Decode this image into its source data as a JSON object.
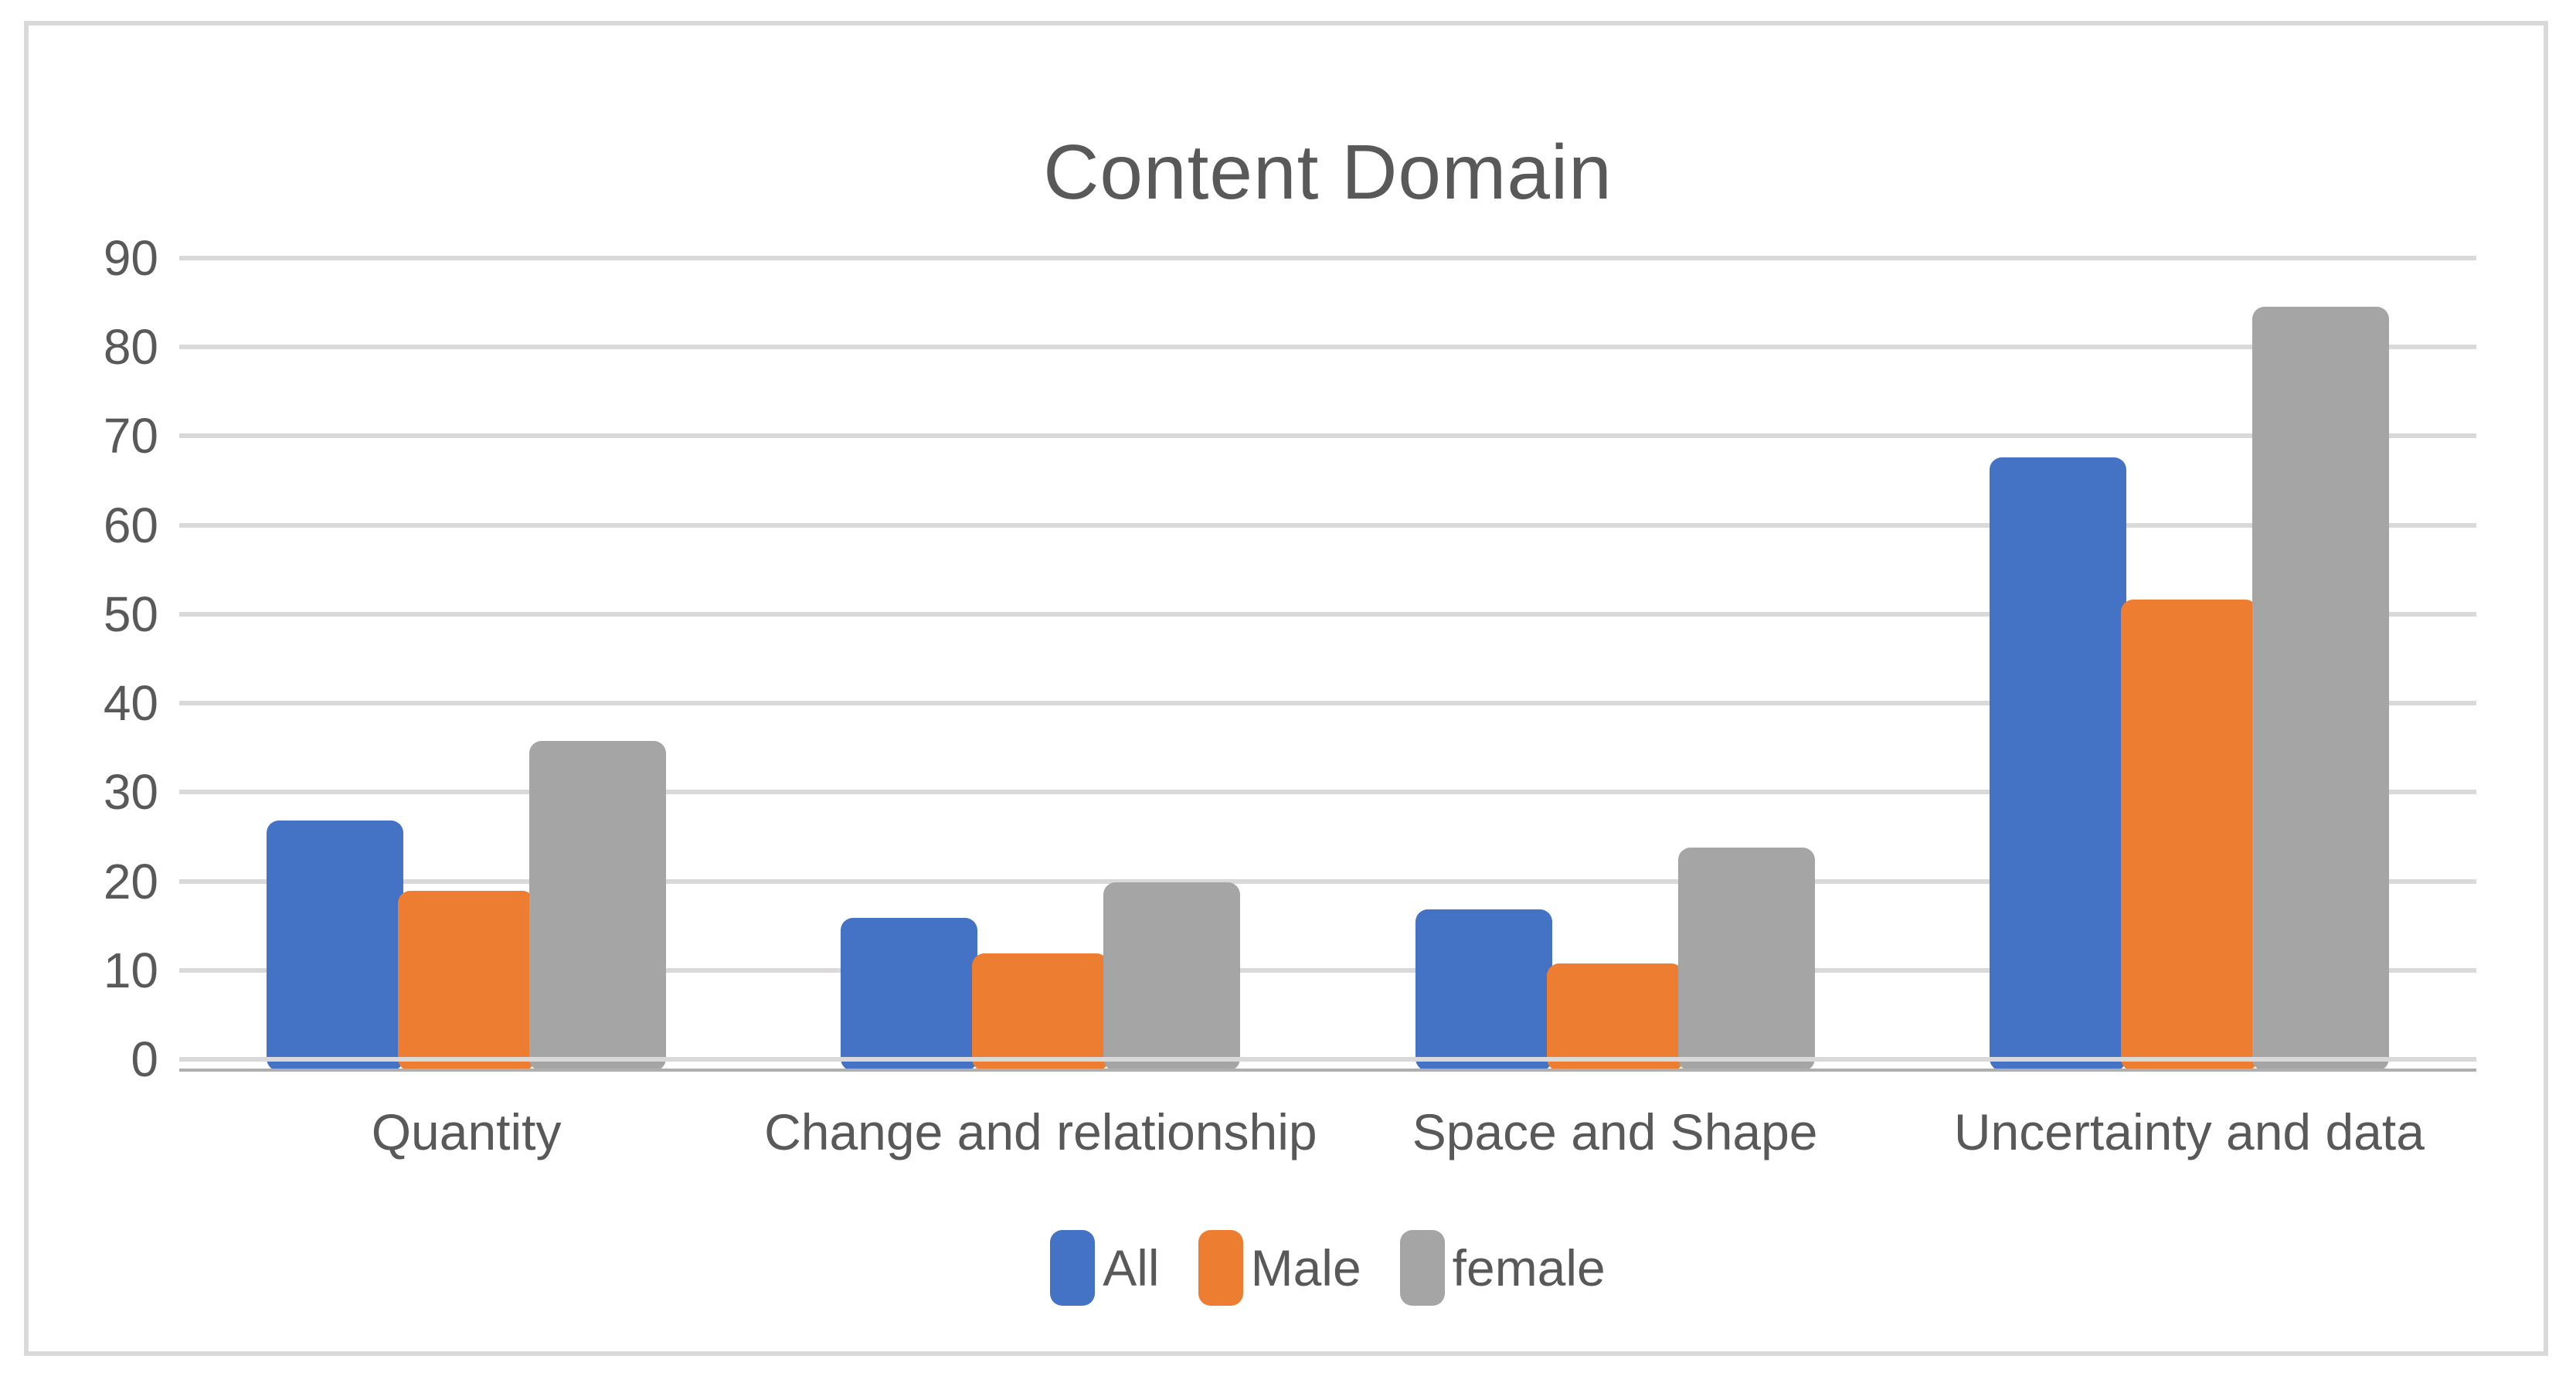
{
  "title": "Content Domain",
  "colors": {
    "text": "#595959",
    "gridline": "#D9D9D9",
    "axis_line": "#AFAFAF",
    "background": "#FFFFFF",
    "frame_border": "#D9D9D9"
  },
  "chart_data": {
    "type": "bar",
    "title": "Content Domain",
    "xlabel": "",
    "ylabel": "",
    "grid": true,
    "legend_position": "bottom",
    "ylim": [
      0,
      90
    ],
    "ytick_step": 10,
    "ytick_labels": [
      "0",
      "10",
      "20",
      "30",
      "40",
      "50",
      "60",
      "70",
      "80",
      "90"
    ],
    "categories": [
      "Quantity",
      "Change and relationship",
      "Space and Shape",
      "Uncertainty and data"
    ],
    "series": [
      {
        "name": "All",
        "color": "#4472C4",
        "values": [
          26.8,
          15.9,
          16.8,
          67.6
        ]
      },
      {
        "name": "Male",
        "color": "#ED7D31",
        "values": [
          18.9,
          11.9,
          10.8,
          51.6
        ]
      },
      {
        "name": "female",
        "color": "#A5A5A5",
        "values": [
          35.8,
          19.9,
          23.8,
          84.5
        ]
      }
    ]
  }
}
